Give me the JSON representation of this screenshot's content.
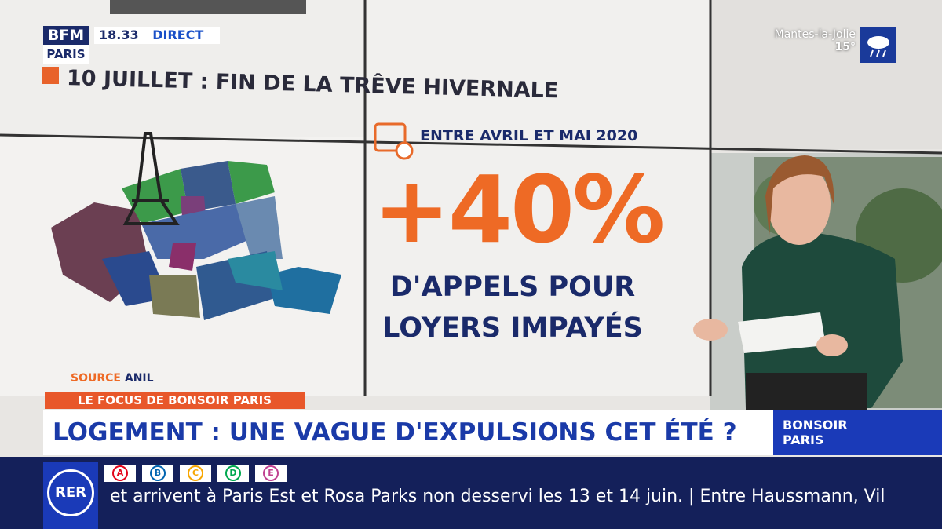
{
  "channel": {
    "logo_top": "BFM",
    "logo_bottom": "PARIS",
    "time": "18.33",
    "live": "DIRECT"
  },
  "weather": {
    "city": "Mantes-la-Jolie",
    "temperature": "15°"
  },
  "screen": {
    "headline": "10 JUILLET : FIN DE LA TRÊVE HIVERNALE",
    "period": "ENTRE AVRIL ET MAI 2020",
    "figure": "+40%",
    "caption_1": "D'APPELS POUR",
    "caption_2": "LOYERS IMPAYÉS",
    "source_label": "SOURCE",
    "source": "ANIL"
  },
  "lower_third": {
    "segment": "LE FOCUS DE BONSOIR PARIS",
    "title": "LOGEMENT : UNE VAGUE D'EXPULSIONS CET ÉTÉ ?",
    "show_1": "BONSOIR",
    "show_2": "PARIS"
  },
  "ticker": {
    "network": "RER",
    "lines": [
      "A",
      "B",
      "C",
      "D",
      "E"
    ],
    "text": "et arrivent à Paris Est et Rosa Parks non desservi les 13 et 14 juin. | Entre Haussmann, Vil"
  }
}
